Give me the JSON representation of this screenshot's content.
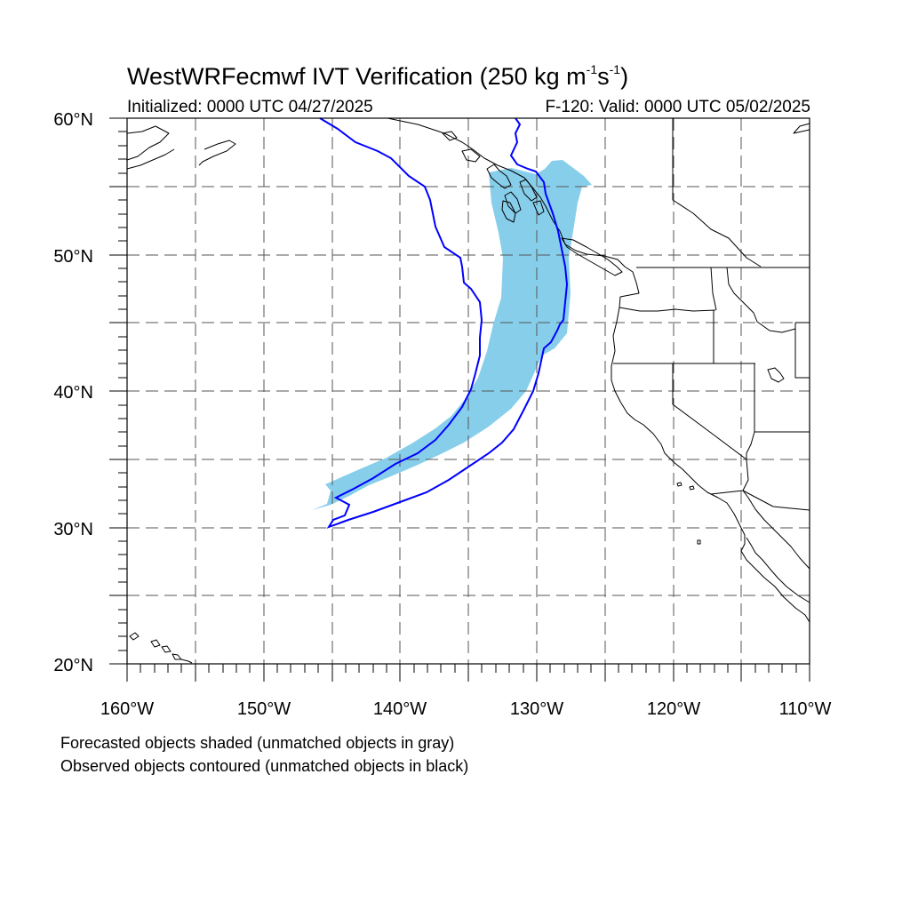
{
  "title": {
    "model": "WestWRFecmwf IVT Verification",
    "units_open": "(250 kg m",
    "units_exp1": "-1",
    "units_mid": "s",
    "units_exp2": "-1",
    "units_close": ")"
  },
  "subtitle": {
    "initialized": "Initialized: 0000 UTC 04/27/2025",
    "valid": "F-120: Valid: 0000 UTC 05/02/2025"
  },
  "map": {
    "extent": {
      "lon": [
        -160,
        -110
      ],
      "lat": [
        20,
        60
      ]
    },
    "lat_labels": [
      "60°N",
      "50°N",
      "40°N",
      "30°N",
      "20°N"
    ],
    "lon_labels": [
      "160°W",
      "150°W",
      "140°W",
      "130°W",
      "120°W",
      "110°W"
    ],
    "forecast_object_color": "#87CEEB",
    "observed_contour_color": "#0000FF"
  },
  "notes": {
    "line1": "Forecasted objects shaded (unmatched objects in gray)",
    "line2": "Observed objects contoured (unmatched objects in black)"
  }
}
